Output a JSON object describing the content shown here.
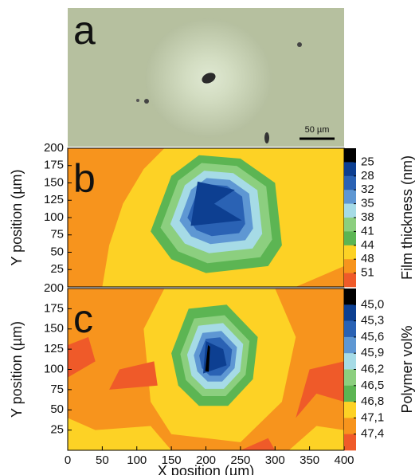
{
  "panel_a": {
    "label": "a",
    "scale_bar": "50 µm"
  },
  "chart_data": [
    {
      "type": "contour",
      "label": "b",
      "y_label": "Y position (µm)",
      "xlim": [
        0,
        400
      ],
      "ylim": [
        0,
        200
      ],
      "yticks": [
        25,
        50,
        75,
        100,
        125,
        150,
        175,
        200
      ],
      "colorbar": {
        "label": "Film thickness (nm)",
        "levels": [
          25,
          28,
          32,
          35,
          38,
          41,
          44,
          48,
          51
        ],
        "colors": [
          "#000000",
          "#0d3f91",
          "#2a62b4",
          "#5e97d3",
          "#a6dbe6",
          "#8ccf7f",
          "#5cb553",
          "#fdd225",
          "#f7941d",
          "#ef5a29"
        ]
      }
    },
    {
      "type": "contour",
      "label": "c",
      "y_label": "Y position (µm)",
      "x_label": "X position (µm)",
      "xlim": [
        0,
        400
      ],
      "ylim": [
        0,
        200
      ],
      "yticks": [
        25,
        50,
        75,
        100,
        125,
        150,
        175,
        200
      ],
      "xticks": [
        0,
        50,
        100,
        150,
        200,
        250,
        300,
        350,
        400
      ],
      "colorbar": {
        "label": "Polymer vol%",
        "levels": [
          {
            "value": 45.0,
            "label": "45,0"
          },
          {
            "value": 45.3,
            "label": "45,3"
          },
          {
            "value": 45.6,
            "label": "45,6"
          },
          {
            "value": 45.9,
            "label": "45,9"
          },
          {
            "value": 46.2,
            "label": "46,2"
          },
          {
            "value": 46.5,
            "label": "46,5"
          },
          {
            "value": 46.8,
            "label": "46,8"
          },
          {
            "value": 47.1,
            "label": "47,1"
          },
          {
            "value": 47.4,
            "label": "47,4"
          }
        ],
        "colors": [
          "#000000",
          "#0d3f91",
          "#2a62b4",
          "#5e97d3",
          "#a6dbe6",
          "#8ccf7f",
          "#5cb553",
          "#fdd225",
          "#f7941d",
          "#ef5a29"
        ]
      }
    }
  ]
}
